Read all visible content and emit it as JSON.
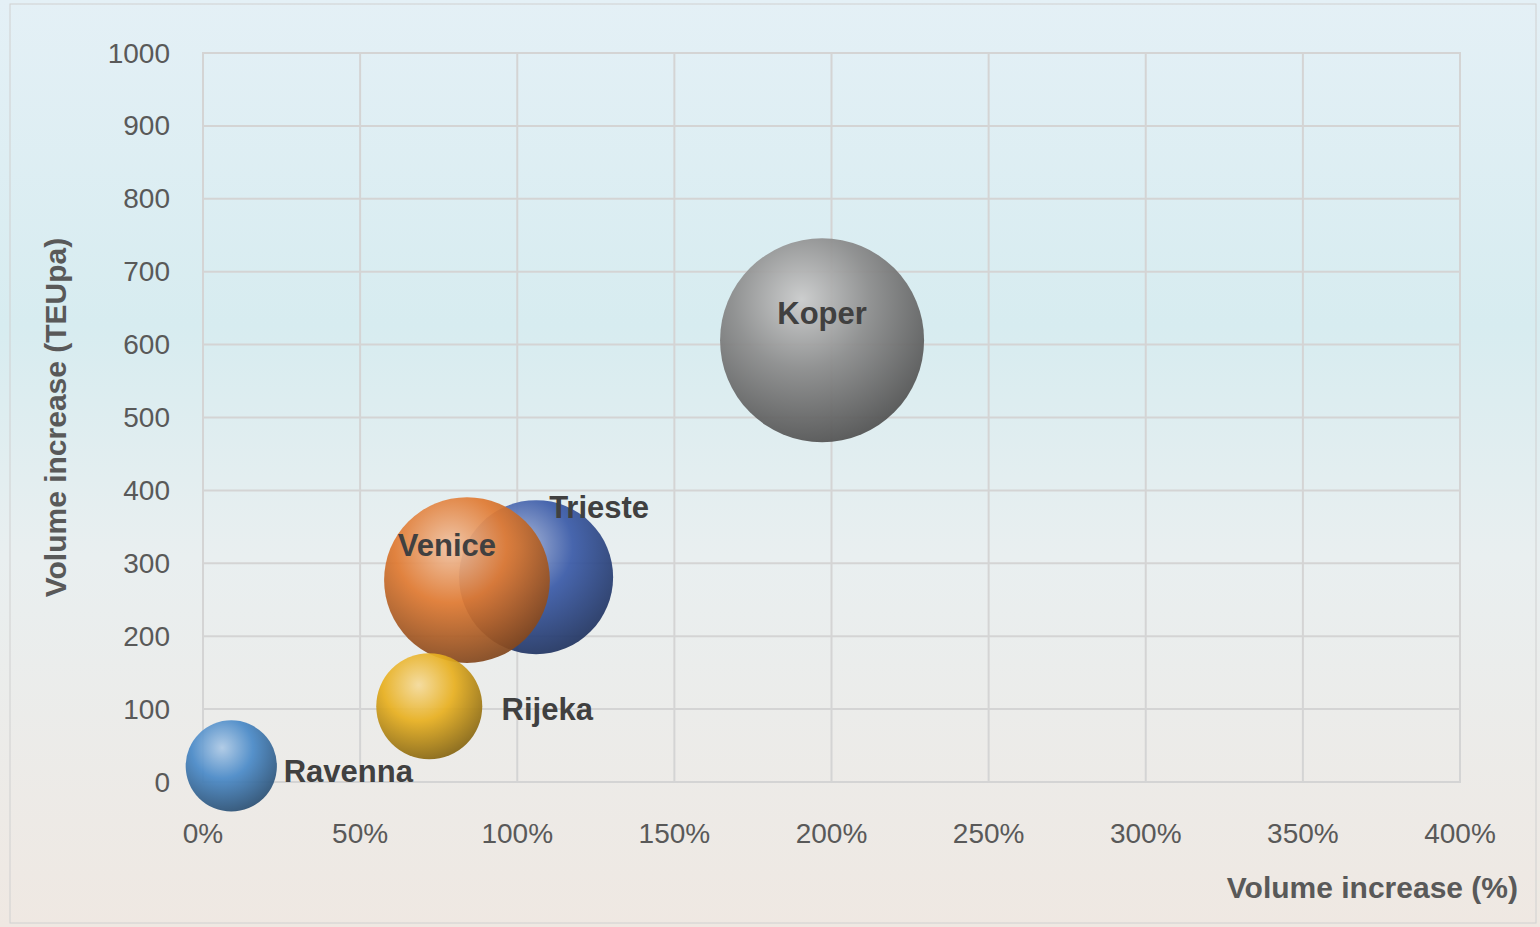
{
  "chart_data": {
    "type": "bubble",
    "x_label": "Volume increase (%)",
    "y_label": "Volume increase (TEUpa)",
    "xlim": [
      0,
      400
    ],
    "xticks": [
      {
        "value": 0,
        "label": "0%"
      },
      {
        "value": 50,
        "label": "50%"
      },
      {
        "value": 100,
        "label": "100%"
      },
      {
        "value": 150,
        "label": "150%"
      },
      {
        "value": 200,
        "label": "200%"
      },
      {
        "value": 250,
        "label": "250%"
      },
      {
        "value": 300,
        "label": "300%"
      },
      {
        "value": 350,
        "label": "350%"
      },
      {
        "value": 400,
        "label": "400%"
      }
    ],
    "ylim": [
      0,
      1000
    ],
    "yticks": [
      0,
      100,
      200,
      300,
      400,
      500,
      600,
      700,
      800,
      900,
      1000
    ],
    "grid": true,
    "series": [
      {
        "name": "Koper",
        "color": "#8c8c8c",
        "x": [
          197
        ],
        "values": [
          606
        ],
        "sizes": [
          1000
        ]
      },
      {
        "name": "Trieste",
        "color": "#3b5ba8",
        "x": [
          106
        ],
        "values": [
          281
        ],
        "sizes": [
          570
        ]
      },
      {
        "name": "Venice",
        "color": "#e07a32",
        "x": [
          84
        ],
        "values": [
          277
        ],
        "sizes": [
          660
        ]
      },
      {
        "name": "Rijeka",
        "color": "#e8b020",
        "x": [
          72
        ],
        "values": [
          104
        ],
        "sizes": [
          270
        ]
      },
      {
        "name": "Ravenna",
        "color": "#4a8ac8",
        "x": [
          9
        ],
        "values": [
          22
        ],
        "sizes": [
          200
        ]
      }
    ]
  }
}
